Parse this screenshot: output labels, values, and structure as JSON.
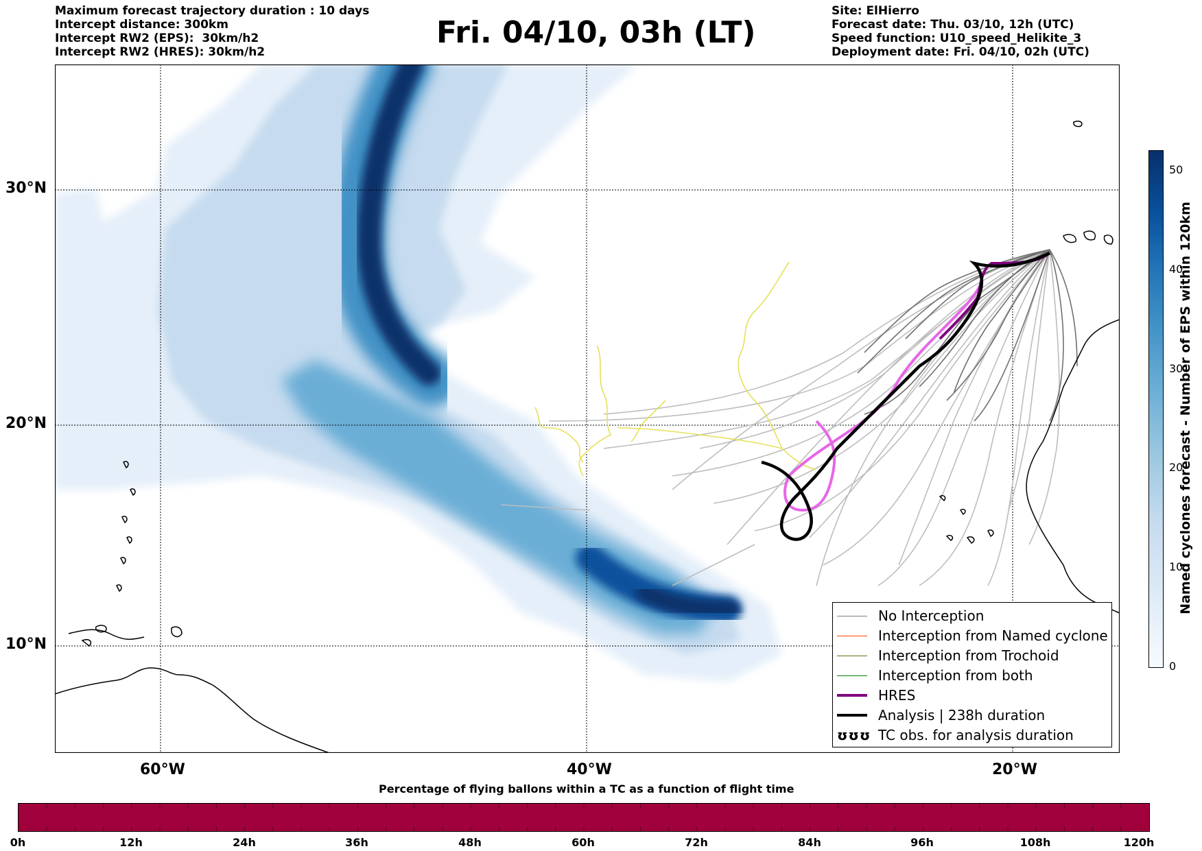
{
  "header": {
    "left_lines": [
      "Maximum forecast trajectory duration : 10 days",
      "Intercept distance: 300km",
      "Intercept RW2 (EPS):  30km/h2",
      "Intercept RW2 (HRES): 30km/h2"
    ],
    "title": "Fri. 04/10, 03h (LT)",
    "right_lines": [
      "Site: ElHierro",
      "Forecast date: Thu. 03/10, 12h (UTC)",
      "Speed function: U10_speed_Helikite_3",
      "Deployment date: Fri. 04/10, 02h (UTC)"
    ]
  },
  "map": {
    "lon_range": [
      -65,
      -15
    ],
    "lat_range": [
      5,
      35
    ],
    "lat_ticks": [
      "30°N",
      "20°N",
      "10°N"
    ],
    "lon_ticks": [
      "60°W",
      "40°W",
      "20°W"
    ],
    "colors": {
      "eps_track": "#808080",
      "hres": "#800080",
      "analysis": "#000000",
      "cyclone_forecast_dark": "#08306b",
      "coast": "#000000"
    }
  },
  "legend": {
    "items": [
      {
        "label": "No Interception",
        "color": "#808080",
        "width": 1.5
      },
      {
        "label": "Interception from Named cyclone",
        "color": "#ff4500",
        "width": 1.5
      },
      {
        "label": "Interception from Trochoid",
        "color": "#6b6b1a",
        "width": 1.5
      },
      {
        "label": "Interception from both",
        "color": "#008000",
        "width": 1.5
      },
      {
        "label": "HRES",
        "color": "#800080",
        "width": 4
      },
      {
        "label": "Analysis | 238h duration",
        "color": "#000000",
        "width": 4
      }
    ],
    "tc_obs_symbol": "ʊʊʊ",
    "tc_obs_label": "TC obs. for analysis duration"
  },
  "colorbar": {
    "ticks": [
      "0",
      "10",
      "20",
      "30",
      "40",
      "50"
    ],
    "label": "Named cyclones forecast - Number of EPS within 120km",
    "range": [
      0,
      52
    ]
  },
  "bottom_bar": {
    "title": "Percentage of flying ballons within a TC as a function of flight time",
    "ticks": [
      "0h",
      "12h",
      "24h",
      "36h",
      "48h",
      "60h",
      "72h",
      "84h",
      "96h",
      "108h",
      "120h"
    ],
    "color": "#a0003c"
  }
}
